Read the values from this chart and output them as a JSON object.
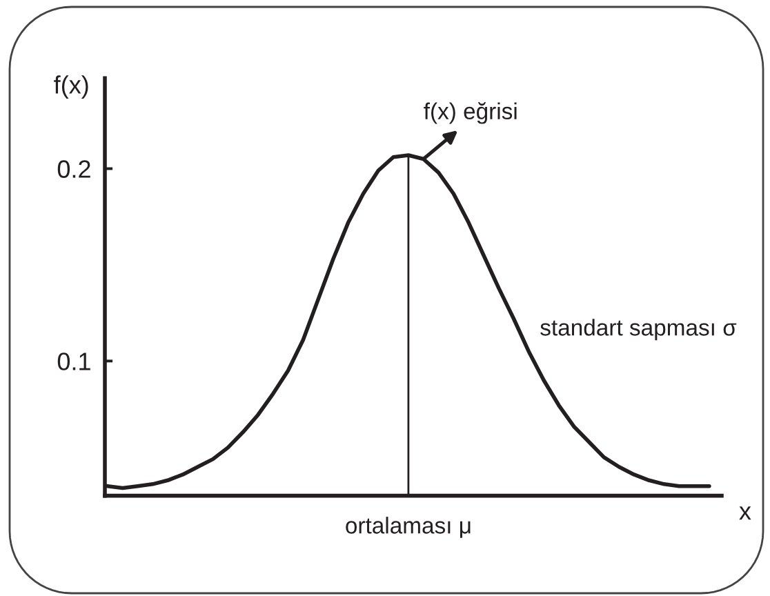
{
  "chart_data": {
    "type": "line",
    "xlabel": "x",
    "ylabel": "f(x)",
    "annotations": [
      "f(x) eğrisi",
      "standart sapması σ"
    ],
    "categories": [
      null,
      null,
      null,
      null,
      null,
      null,
      null,
      null,
      null,
      null,
      null,
      null,
      null,
      null,
      null,
      null,
      null,
      null,
      null,
      null,
      "ortalaması μ",
      null,
      null,
      null,
      null,
      null,
      null,
      null,
      null,
      null,
      null,
      null,
      null,
      null,
      null,
      null,
      null,
      null,
      null,
      null,
      null
    ],
    "series": [
      {
        "color": "#231f20",
        "values": [
          0.035,
          0.034,
          0.035,
          0.036,
          0.038,
          0.041,
          0.045,
          0.049,
          0.055,
          0.063,
          0.072,
          0.083,
          0.095,
          0.111,
          0.132,
          0.153,
          0.172,
          0.187,
          0.199,
          0.206,
          0.207,
          0.205,
          0.198,
          0.187,
          0.172,
          0.155,
          0.138,
          0.122,
          0.105,
          0.09,
          0.077,
          0.066,
          0.058,
          0.05,
          0.045,
          0.041,
          0.038,
          0.036,
          0.035,
          0.035,
          0.035
        ]
      }
    ],
    "ylim": [
      0.03,
      0.247
    ],
    "yticks": [
      0.1,
      0.2
    ],
    "ref_lines": [
      {
        "axis": "x",
        "value": "ortalaması μ",
        "color": "#231f20"
      }
    ]
  }
}
